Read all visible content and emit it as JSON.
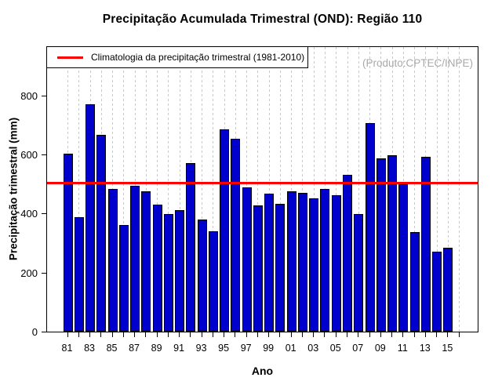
{
  "chart_data": {
    "type": "bar",
    "title": "Precipitação Acumulada Trimestral (OND): Região 110",
    "xlabel": "Ano",
    "ylabel": "Precipitação trimestral (mm)",
    "legend_label": "Climatologia da precipitação trimestral (1981-2010)",
    "watermark": "(Produto:CPTEC/INPE)",
    "years": [
      1981,
      1982,
      1983,
      1984,
      1985,
      1986,
      1987,
      1988,
      1989,
      1990,
      1991,
      1992,
      1993,
      1994,
      1995,
      1996,
      1997,
      1998,
      1999,
      2000,
      2001,
      2002,
      2003,
      2004,
      2005,
      2006,
      2007,
      2008,
      2009,
      2010,
      2011,
      2012,
      2013,
      2014,
      2015
    ],
    "values": [
      603,
      387,
      770,
      667,
      483,
      360,
      494,
      476,
      430,
      397,
      411,
      570,
      379,
      340,
      685,
      653,
      488,
      428,
      466,
      432,
      474,
      469,
      452,
      483,
      462,
      532,
      399,
      706,
      588,
      597,
      500,
      337,
      592,
      272,
      284
    ],
    "climatology_mm": 503,
    "y_ticks": [
      0,
      200,
      400,
      600,
      800
    ],
    "ylim": [
      0,
      969
    ],
    "x_tick_labels": [
      "81",
      "83",
      "85",
      "87",
      "89",
      "91",
      "93",
      "95",
      "97",
      "99",
      "01",
      "03",
      "05",
      "07",
      "09",
      "11",
      "13",
      "15"
    ],
    "x_axis_end_year": 2016,
    "grid": "vertical-dashed-per-year",
    "legend_position": "top-left",
    "colors": {
      "bar_fill": "#0000CD",
      "bar_border": "#000000",
      "climatology_line": "#FF0000",
      "grid_line": "#C8C8C8",
      "watermark_text": "#A9A9A9",
      "frame": "#000000"
    }
  }
}
